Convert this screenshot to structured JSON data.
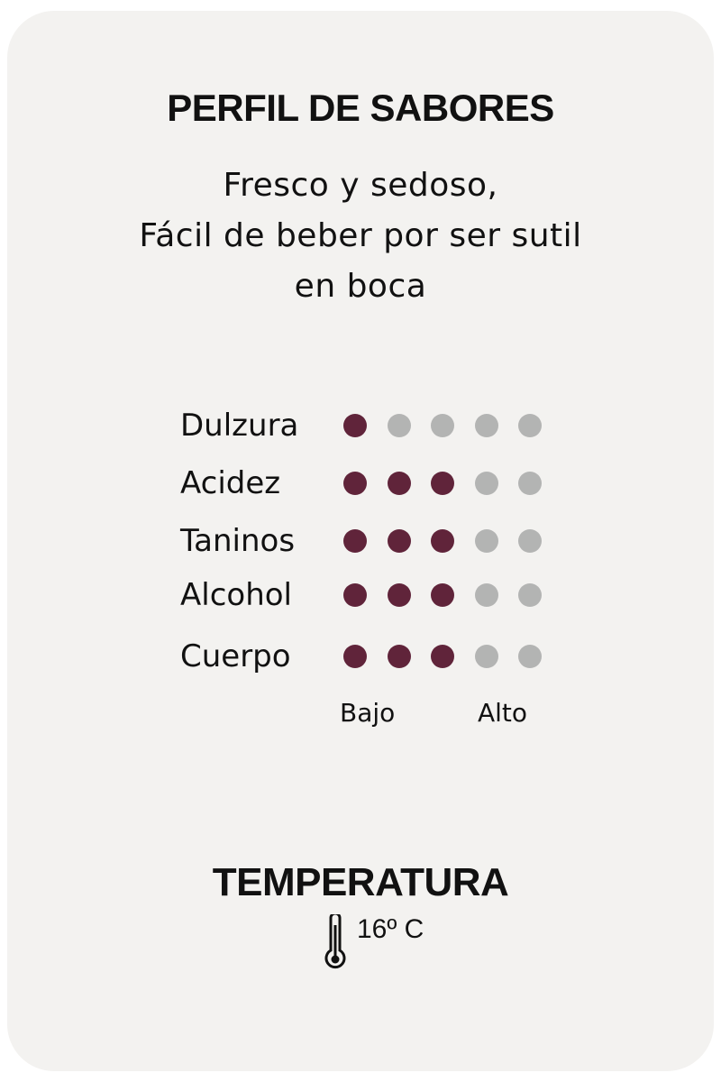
{
  "profile": {
    "title": "PERFIL DE SABORES",
    "description": [
      "Fresco y sedoso,",
      "Fácil de beber por ser sutil",
      "en boca"
    ],
    "attributes": [
      {
        "label": "Dulzura",
        "level": 1
      },
      {
        "label": "Acidez",
        "level": 3
      },
      {
        "label": "Taninos",
        "level": 3
      },
      {
        "label": "Alcohol",
        "level": 3
      },
      {
        "label": "Cuerpo",
        "level": 3
      }
    ],
    "max_level": 5,
    "scale_low": "Bajo",
    "scale_high": "Alto"
  },
  "temperature": {
    "title": "TEMPERATURA",
    "value": "16º C",
    "icon": "thermometer-icon"
  },
  "colors": {
    "filled": "#60243a",
    "empty": "#b3b4b3",
    "card": "#f3f2f0"
  }
}
